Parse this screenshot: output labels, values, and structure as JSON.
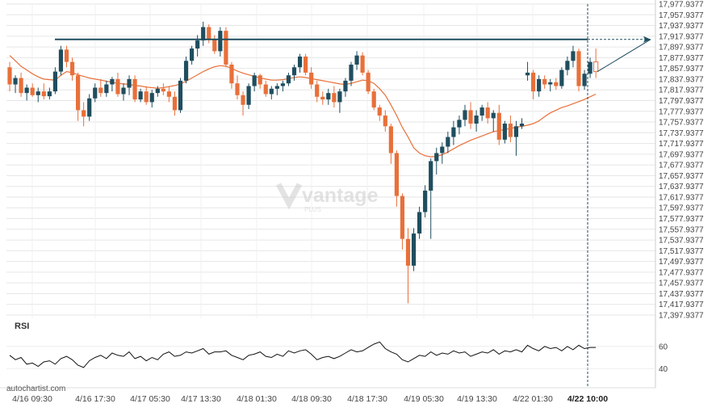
{
  "source_label": "autochartist.com",
  "watermark": {
    "brand": "vantage",
    "sub": "PLUS"
  },
  "chart_data": [
    {
      "type": "candlestick",
      "title": "",
      "y_ticks": [
        "17,977.9377",
        "17,957.9377",
        "17,937.9377",
        "17,917.9377",
        "17,897.9377",
        "17,877.9377",
        "17,857.9377",
        "17,837.9377",
        "17,817.9377",
        "17,797.9377",
        "17,777.9377",
        "17,757.9377",
        "17,737.9377",
        "17,717.9377",
        "17,697.9377",
        "17,677.9377",
        "17,657.9377",
        "17,637.9377",
        "17,617.9377",
        "17,597.9377",
        "17,577.9377",
        "17,557.9377",
        "17,537.9377",
        "17,517.9377",
        "17,497.9377",
        "17,477.9377",
        "17,457.9377",
        "17,437.9377",
        "17,417.9377",
        "17,397.9377"
      ],
      "y_tick_values": [
        17977.9377,
        17957.9377,
        17937.9377,
        17917.9377,
        17897.9377,
        17877.9377,
        17857.9377,
        17837.9377,
        17817.9377,
        17797.9377,
        17777.9377,
        17757.9377,
        17737.9377,
        17717.9377,
        17697.9377,
        17677.9377,
        17657.9377,
        17637.9377,
        17617.9377,
        17597.9377,
        17577.9377,
        17557.9377,
        17537.9377,
        17517.9377,
        17497.9377,
        17477.9377,
        17457.9377,
        17437.9377,
        17417.9377,
        17397.9377
      ],
      "x_ticks": [
        "4/16 09:30",
        "4/16 17:30",
        "4/17 05:30",
        "4/17 13:30",
        "4/18 01:30",
        "4/18 09:30",
        "4/18 17:30",
        "4/19 05:30",
        "4/19 13:30",
        "4/22 01:30",
        "4/22 10:00"
      ],
      "highlighted_x_tick": "4/22 10:00",
      "resistance_level": 17912,
      "colors": {
        "up": "#1f4e5f",
        "down": "#e8703a",
        "ma": "#e8703a",
        "resistance": "#1f4e5f",
        "grid": "#e6e6e6"
      },
      "candles": [
        [
          17860,
          17870,
          17815,
          17828
        ],
        [
          17828,
          17845,
          17812,
          17840
        ],
        [
          17840,
          17850,
          17805,
          17812
        ],
        [
          17812,
          17828,
          17798,
          17822
        ],
        [
          17822,
          17830,
          17805,
          17808
        ],
        [
          17808,
          17822,
          17795,
          17815
        ],
        [
          17815,
          17830,
          17800,
          17806
        ],
        [
          17806,
          17822,
          17800,
          17815
        ],
        [
          17815,
          17860,
          17810,
          17852
        ],
        [
          17852,
          17900,
          17845,
          17893
        ],
        [
          17893,
          17900,
          17860,
          17870
        ],
        [
          17870,
          17878,
          17835,
          17845
        ],
        [
          17845,
          17850,
          17760,
          17780
        ],
        [
          17780,
          17795,
          17750,
          17768
        ],
        [
          17768,
          17810,
          17760,
          17802
        ],
        [
          17802,
          17830,
          17795,
          17822
        ],
        [
          17822,
          17838,
          17805,
          17812
        ],
        [
          17812,
          17835,
          17805,
          17828
        ],
        [
          17828,
          17842,
          17815,
          17838
        ],
        [
          17838,
          17850,
          17805,
          17810
        ],
        [
          17810,
          17830,
          17798,
          17822
        ],
        [
          17822,
          17845,
          17808,
          17838
        ],
        [
          17838,
          17845,
          17795,
          17800
        ],
        [
          17800,
          17820,
          17795,
          17815
        ],
        [
          17815,
          17825,
          17790,
          17795
        ],
        [
          17795,
          17818,
          17785,
          17812
        ],
        [
          17812,
          17825,
          17805,
          17820
        ],
        [
          17820,
          17830,
          17808,
          17815
        ],
        [
          17815,
          17825,
          17795,
          17805
        ],
        [
          17805,
          17815,
          17770,
          17780
        ],
        [
          17780,
          17840,
          17775,
          17835
        ],
        [
          17835,
          17880,
          17830,
          17872
        ],
        [
          17872,
          17900,
          17865,
          17895
        ],
        [
          17895,
          17920,
          17880,
          17910
        ],
        [
          17910,
          17945,
          17900,
          17935
        ],
        [
          17935,
          17940,
          17905,
          17912
        ],
        [
          17912,
          17920,
          17885,
          17890
        ],
        [
          17890,
          17935,
          17880,
          17928
        ],
        [
          17928,
          17935,
          17860,
          17865
        ],
        [
          17865,
          17870,
          17820,
          17830
        ],
        [
          17830,
          17845,
          17800,
          17808
        ],
        [
          17808,
          17815,
          17770,
          17790
        ],
        [
          17790,
          17830,
          17782,
          17825
        ],
        [
          17825,
          17850,
          17815,
          17845
        ],
        [
          17845,
          17848,
          17820,
          17828
        ],
        [
          17828,
          17835,
          17805,
          17810
        ],
        [
          17810,
          17825,
          17800,
          17820
        ],
        [
          17820,
          17830,
          17808,
          17825
        ],
        [
          17825,
          17835,
          17815,
          17830
        ],
        [
          17830,
          17850,
          17825,
          17845
        ],
        [
          17845,
          17865,
          17835,
          17860
        ],
        [
          17860,
          17885,
          17850,
          17880
        ],
        [
          17880,
          17885,
          17845,
          17850
        ],
        [
          17850,
          17860,
          17820,
          17828
        ],
        [
          17828,
          17835,
          17795,
          17805
        ],
        [
          17805,
          17815,
          17790,
          17800
        ],
        [
          17800,
          17820,
          17790,
          17812
        ],
        [
          17812,
          17825,
          17785,
          17795
        ],
        [
          17795,
          17820,
          17775,
          17815
        ],
        [
          17815,
          17840,
          17805,
          17835
        ],
        [
          17835,
          17870,
          17825,
          17865
        ],
        [
          17865,
          17890,
          17855,
          17882
        ],
        [
          17882,
          17888,
          17845,
          17850
        ],
        [
          17850,
          17855,
          17810,
          17815
        ],
        [
          17815,
          17820,
          17780,
          17785
        ],
        [
          17785,
          17790,
          17760,
          17770
        ],
        [
          17770,
          17780,
          17740,
          17750
        ],
        [
          17750,
          17755,
          17680,
          17700
        ],
        [
          17700,
          17705,
          17600,
          17620
        ],
        [
          17620,
          17625,
          17520,
          17540
        ],
        [
          17540,
          17560,
          17420,
          17490
        ],
        [
          17490,
          17560,
          17480,
          17550
        ],
        [
          17550,
          17600,
          17540,
          17590
        ],
        [
          17590,
          17640,
          17580,
          17630
        ],
        [
          17630,
          17690,
          17540,
          17685
        ],
        [
          17685,
          17710,
          17660,
          17700
        ],
        [
          17700,
          17720,
          17680,
          17712
        ],
        [
          17712,
          17740,
          17700,
          17730
        ],
        [
          17730,
          17760,
          17715,
          17748
        ],
        [
          17748,
          17770,
          17735,
          17762
        ],
        [
          17762,
          17790,
          17750,
          17780
        ],
        [
          17780,
          17795,
          17745,
          17755
        ],
        [
          17755,
          17780,
          17740,
          17770
        ],
        [
          17770,
          17790,
          17760,
          17785
        ],
        [
          17785,
          17795,
          17755,
          17765
        ],
        [
          17765,
          17780,
          17740,
          17775
        ],
        [
          17775,
          17790,
          17715,
          17725
        ],
        [
          17725,
          17760,
          17718,
          17755
        ],
        [
          17755,
          17770,
          17720,
          17730
        ],
        [
          17730,
          17760,
          17695,
          17750
        ],
        [
          17750,
          17765,
          17745,
          17755
        ],
        [
          17845,
          17870,
          17835,
          17850
        ],
        [
          17850,
          17855,
          17800,
          17815
        ],
        [
          17815,
          17845,
          17805,
          17838
        ],
        [
          17838,
          17845,
          17820,
          17828
        ],
        [
          17828,
          17838,
          17815,
          17832
        ],
        [
          17832,
          17840,
          17818,
          17825
        ],
        [
          17825,
          17860,
          17820,
          17855
        ],
        [
          17855,
          17880,
          17845,
          17872
        ],
        [
          17872,
          17900,
          17860,
          17890
        ],
        [
          17890,
          17895,
          17815,
          17825
        ],
        [
          17825,
          17855,
          17818,
          17848
        ],
        [
          17848,
          17878,
          17840,
          17870
        ],
        [
          17870,
          17895,
          17840,
          17852
        ]
      ],
      "moving_average": [
        17882,
        17872,
        17862,
        17855,
        17848,
        17842,
        17838,
        17837,
        17836,
        17845,
        17852,
        17850,
        17846,
        17843,
        17840,
        17838,
        17836,
        17834,
        17832,
        17830,
        17829,
        17828,
        17826,
        17825,
        17823,
        17822,
        17821,
        17822,
        17824,
        17826,
        17829,
        17834,
        17840,
        17846,
        17852,
        17857,
        17861,
        17863,
        17862,
        17858,
        17853,
        17849,
        17846,
        17843,
        17840,
        17838,
        17836,
        17836,
        17837,
        17839,
        17841,
        17842,
        17841,
        17839,
        17837,
        17835,
        17833,
        17831,
        17829,
        17828,
        17830,
        17833,
        17836,
        17835,
        17830,
        17820,
        17808,
        17790,
        17770,
        17748,
        17730,
        17710,
        17700,
        17695,
        17693,
        17694,
        17697,
        17702,
        17708,
        17714,
        17719,
        17724,
        17728,
        17732,
        17736,
        17740,
        17742,
        17744,
        17746,
        17748,
        17750,
        17752,
        17755,
        17760,
        17768,
        17775,
        17780,
        17785,
        17788,
        17792,
        17796,
        17800,
        17805,
        17810
      ],
      "rsi": {
        "label": "RSI",
        "ticks": [
          60,
          40
        ],
        "range": [
          30,
          70
        ],
        "values": [
          52,
          48,
          50,
          44,
          45,
          42,
          46,
          47,
          44,
          49,
          51,
          48,
          43,
          41,
          47,
          50,
          52,
          49,
          54,
          52,
          51,
          55,
          49,
          51,
          47,
          50,
          48,
          53,
          55,
          51,
          52,
          55,
          54,
          56,
          58,
          53,
          55,
          55,
          56,
          52,
          50,
          48,
          52,
          53,
          55,
          51,
          50,
          53,
          51,
          56,
          54,
          56,
          57,
          53,
          48,
          50,
          51,
          49,
          51,
          54,
          57,
          55,
          56,
          59,
          62,
          64,
          58,
          55,
          53,
          48,
          46,
          49,
          52,
          51,
          55,
          52,
          54,
          53,
          56,
          54,
          55,
          51,
          53,
          55,
          54,
          57,
          53,
          56,
          55,
          57,
          55,
          61,
          58,
          56,
          60,
          58,
          59,
          56,
          60,
          57,
          61,
          58,
          59,
          59
        ]
      }
    }
  ]
}
